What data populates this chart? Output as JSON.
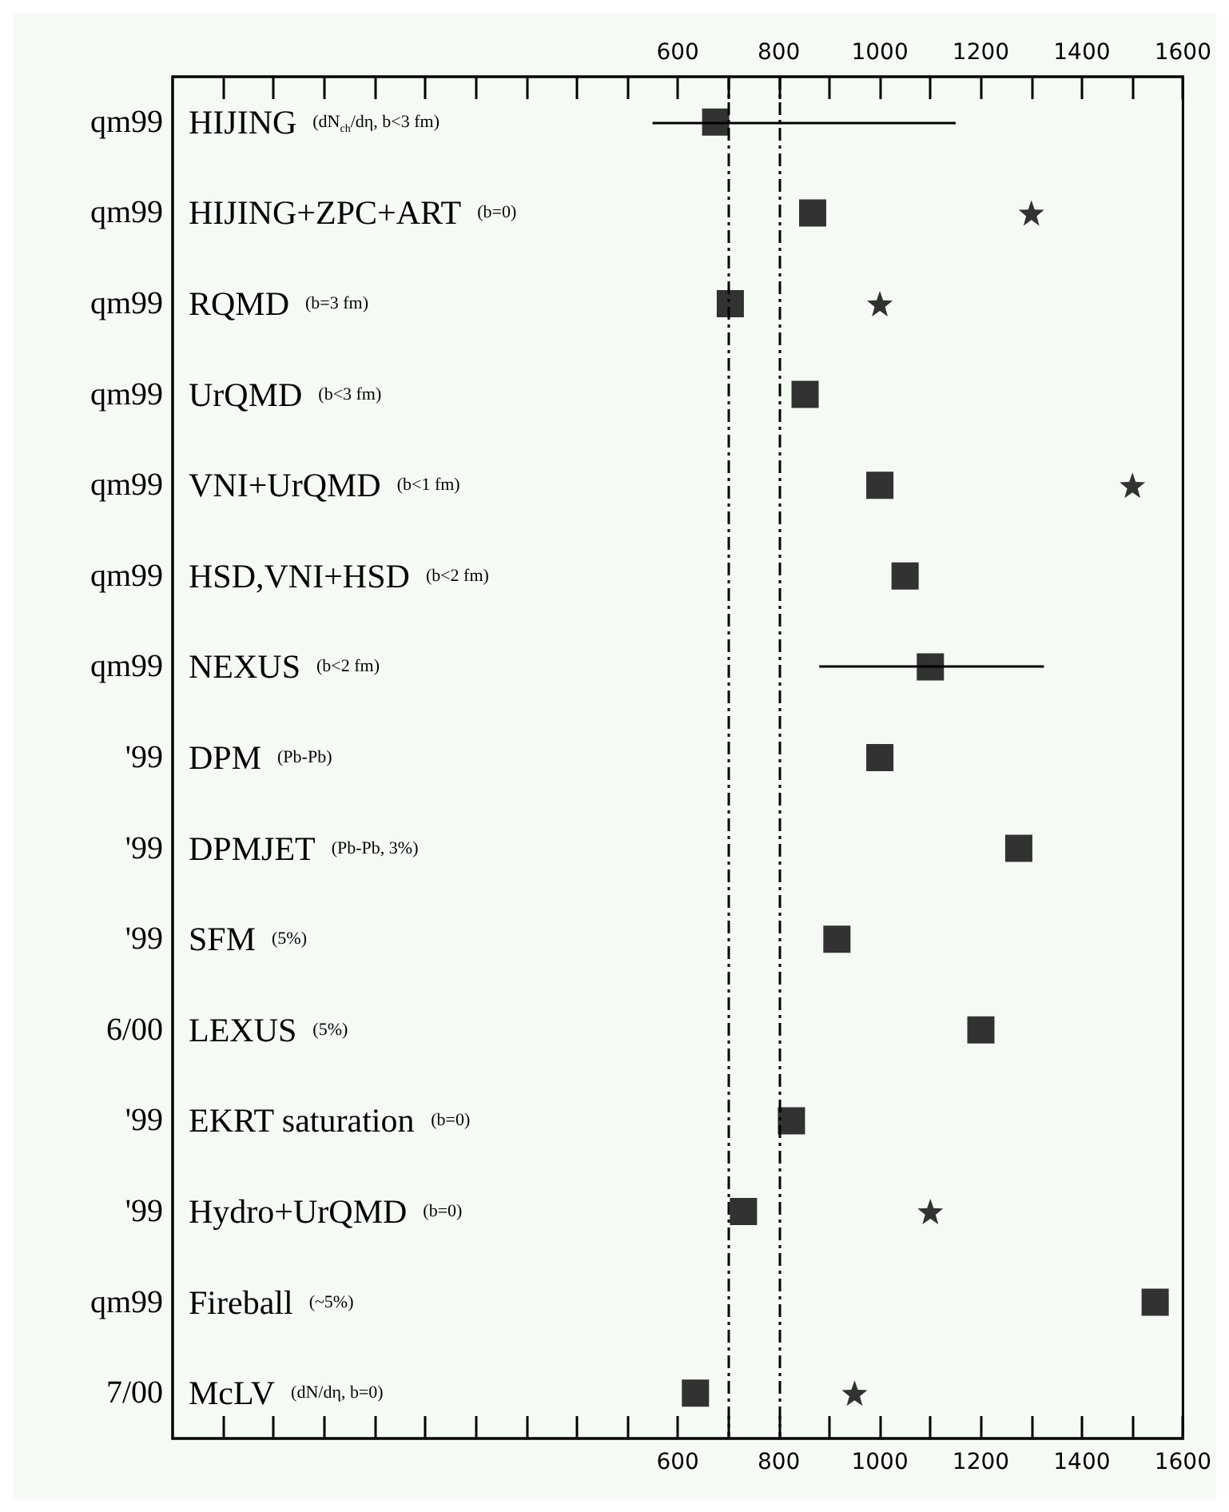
{
  "chart_data": {
    "type": "scatter",
    "orientation": "horizontal",
    "categories": [
      "HIJING (dN$_{ch}$/dη, b<3 fm)",
      "HIJING+ZPC+ART (b=0)",
      "RQMD (b=3 fm)",
      "UrQMD (b<3 fm)",
      "VNI+UrQMD (b<1 fm)",
      "HSD,VNI+HSD (b<2 fm)",
      "NEXUS (b<2 fm)",
      "DPM (Pb-Pb)",
      "DPMJET (Pb-Pb, 3%)",
      "SFM (5%)",
      "LEXUS (5%)",
      "EKRT saturation (b=0)",
      "Hydro+UrQMD (b=0)",
      "Fireball (~5%)",
      "McLV (dN/dη, b=0)"
    ],
    "y2_categories": [
      "qm99",
      "qm99",
      "qm99",
      "qm99",
      "qm99",
      "qm99",
      "qm99",
      "'99",
      "'99",
      "'99",
      "6/00",
      "'99",
      "'99",
      "qm99",
      "7/00"
    ],
    "series": [
      {
        "color": "#000000",
        "marker": "square",
        "values": [
          675,
          867,
          704,
          852,
          1000,
          1050,
          1100,
          1000,
          1275,
          915,
          1200,
          825,
          730,
          1545,
          635
        ],
        "errors": [
          [
            550,
            1150
          ],
          null,
          null,
          null,
          null,
          null,
          [
            880,
            1325
          ],
          null,
          null,
          null,
          null,
          null,
          null,
          null,
          null
        ]
      },
      {
        "color": "#000000",
        "marker": "star",
        "values": [
          null,
          1300,
          1000,
          null,
          1500,
          null,
          null,
          null,
          null,
          null,
          null,
          null,
          1100,
          null,
          950
        ]
      }
    ],
    "xlim": [
      -400,
      1600
    ],
    "xticks": [
      {
        "value": -300,
        "label": null
      },
      {
        "value": -200,
        "label": null
      },
      {
        "value": -100,
        "label": null
      },
      {
        "value": 0,
        "label": null
      },
      {
        "value": 100,
        "label": null
      },
      {
        "value": 200,
        "label": null
      },
      {
        "value": 300,
        "label": null
      },
      {
        "value": 400,
        "label": null
      },
      {
        "value": 500,
        "label": null
      },
      600,
      {
        "value": 700,
        "label": null
      },
      800,
      {
        "value": 900,
        "label": null
      },
      1000,
      {
        "value": 1100,
        "label": null
      },
      1200,
      {
        "value": 1300,
        "label": null
      },
      1400,
      {
        "value": 1500,
        "label": null
      },
      1600
    ],
    "x2lim": [
      -400,
      1600
    ],
    "x2ticks": [
      {
        "value": -300,
        "label": null
      },
      {
        "value": -200,
        "label": null
      },
      {
        "value": -100,
        "label": null
      },
      {
        "value": 0,
        "label": null
      },
      {
        "value": 100,
        "label": null
      },
      {
        "value": 200,
        "label": null
      },
      {
        "value": 300,
        "label": null
      },
      {
        "value": 400,
        "label": null
      },
      {
        "value": 500,
        "label": null
      },
      600,
      {
        "value": 700,
        "label": null
      },
      800,
      {
        "value": 900,
        "label": null
      },
      1000,
      {
        "value": 1100,
        "label": null
      },
      1200,
      {
        "value": 1300,
        "label": null
      },
      1400,
      {
        "value": 1500,
        "label": null
      },
      1600
    ],
    "ref_lines": [
      {
        "axis": "x",
        "value": 700,
        "line_style": "dashed",
        "color": "#000000"
      },
      {
        "axis": "x",
        "value": 800,
        "line_style": "dashed",
        "color": "#000000"
      }
    ],
    "grid": false
  }
}
